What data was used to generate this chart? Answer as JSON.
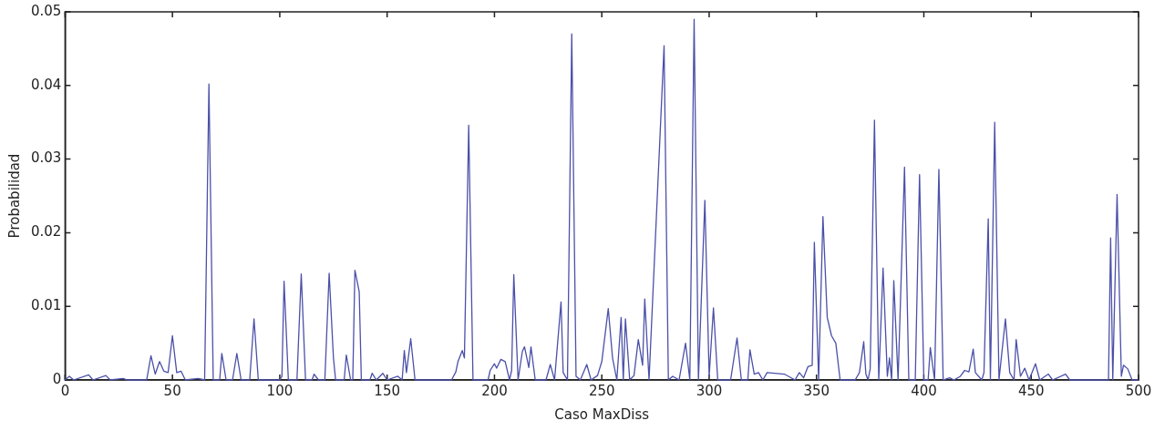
{
  "chart_data": {
    "type": "line",
    "xlabel": "Caso MaxDiss",
    "ylabel": "Probabilidad",
    "marker": "none",
    "line_style": "solid",
    "xlim": [
      0,
      500
    ],
    "xticks": [
      0,
      50,
      100,
      150,
      200,
      250,
      300,
      350,
      400,
      450,
      500
    ],
    "ylim": [
      0,
      0.05
    ],
    "yticks": [
      0,
      0.01,
      0.02,
      0.03,
      0.04,
      0.05
    ],
    "series": [
      {
        "color": "#4b50a8",
        "x": [
          0,
          2,
          4,
          11,
          13,
          19,
          21,
          27,
          29,
          38,
          40,
          42,
          44,
          46,
          48,
          50,
          52,
          54,
          56,
          62,
          65,
          67,
          69,
          72,
          73,
          75,
          78,
          80,
          82,
          86,
          88,
          90,
          100,
          101,
          102,
          104,
          108,
          110,
          112,
          115,
          116,
          118,
          121,
          123,
          125,
          126,
          130,
          131,
          133,
          134,
          135,
          137,
          138,
          142,
          143,
          145,
          148,
          150,
          155,
          157,
          158,
          159,
          161,
          163,
          180,
          182,
          183,
          185,
          186,
          188,
          190,
          197,
          198,
          200,
          201,
          203,
          205,
          207,
          208,
          209,
          211,
          213,
          214,
          216,
          217,
          219,
          224,
          226,
          228,
          231,
          232,
          234,
          236,
          238,
          240,
          243,
          245,
          248,
          250,
          253,
          255,
          257,
          259,
          260,
          261,
          263,
          265,
          267,
          269,
          270,
          272,
          279,
          281,
          283,
          286,
          289,
          291,
          293,
          295,
          298,
          300,
          302,
          304,
          310,
          313,
          315,
          318,
          319,
          321,
          323,
          325,
          327,
          335,
          340,
          342,
          344,
          346,
          348,
          349,
          351,
          353,
          355,
          357,
          359,
          361,
          368,
          370,
          372,
          373,
          374,
          375,
          377,
          379,
          381,
          383,
          384,
          385,
          386,
          388,
          391,
          393,
          396,
          398,
          400,
          402,
          403,
          405,
          407,
          409,
          412,
          414,
          417,
          419,
          421,
          423,
          424,
          427,
          428,
          430,
          431,
          433,
          435,
          438,
          440,
          442,
          443,
          445,
          447,
          449,
          452,
          454,
          458,
          460,
          466,
          468,
          475,
          486,
          487,
          488,
          490,
          492,
          493,
          495,
          497,
          500
        ],
        "values": [
          0,
          0.0005,
          0,
          0.0007,
          0,
          0.0006,
          0,
          0.0002,
          0,
          0,
          0.0033,
          0.0008,
          0.0025,
          0.0012,
          0.001,
          0.006,
          0.001,
          0.0012,
          0,
          0.0002,
          0,
          0.0402,
          0,
          0,
          0.0036,
          0,
          0,
          0.0036,
          0,
          0,
          0.0083,
          0,
          0,
          0.0005,
          0.0134,
          0,
          0,
          0.0144,
          0,
          0,
          0.0008,
          0,
          0,
          0.0145,
          0.003,
          0,
          0,
          0.0034,
          0,
          0,
          0.0149,
          0.012,
          0,
          0,
          0.0009,
          0,
          0.0009,
          0,
          0.0005,
          0,
          0.004,
          0.001,
          0.0056,
          0,
          0,
          0.0011,
          0.0025,
          0.004,
          0.003,
          0.0346,
          0,
          0,
          0.0013,
          0.0022,
          0.0016,
          0.0028,
          0.0025,
          0,
          0.0013,
          0.0143,
          0,
          0.0039,
          0.0045,
          0.0017,
          0.0045,
          0,
          0,
          0.0021,
          0,
          0.0106,
          0.001,
          0,
          0.047,
          0.0005,
          0,
          0.0021,
          0,
          0.0006,
          0.0025,
          0.0097,
          0.003,
          0,
          0.0085,
          0,
          0.0083,
          0,
          0.0006,
          0.0055,
          0.002,
          0.011,
          0,
          0.0454,
          0,
          0.0005,
          0,
          0.005,
          0,
          0.049,
          0,
          0.0244,
          0.0005,
          0.0098,
          0,
          0,
          0.0057,
          0,
          0,
          0.0041,
          0.0008,
          0.001,
          0,
          0.001,
          0.0008,
          0,
          0.001,
          0.0003,
          0.0018,
          0.002,
          0.0187,
          0,
          0.0222,
          0.0085,
          0.006,
          0.005,
          0,
          0,
          0.001,
          0.0052,
          0.0008,
          0,
          0.0015,
          0.0353,
          0,
          0.0152,
          0.0005,
          0.003,
          0,
          0.0135,
          0,
          0.0289,
          0,
          0,
          0.0279,
          0,
          0,
          0.0044,
          0,
          0.0286,
          0,
          0.0003,
          0,
          0.0005,
          0.0013,
          0.0011,
          0.0042,
          0.001,
          0,
          0.001,
          0.0219,
          0,
          0.035,
          0,
          0.0083,
          0.001,
          0,
          0.0055,
          0.0005,
          0.0016,
          0,
          0.0022,
          0,
          0.0008,
          0,
          0.0008,
          0,
          0,
          0,
          0.0193,
          0,
          0.0252,
          0.0005,
          0.002,
          0.0015,
          0,
          0
        ]
      }
    ]
  }
}
